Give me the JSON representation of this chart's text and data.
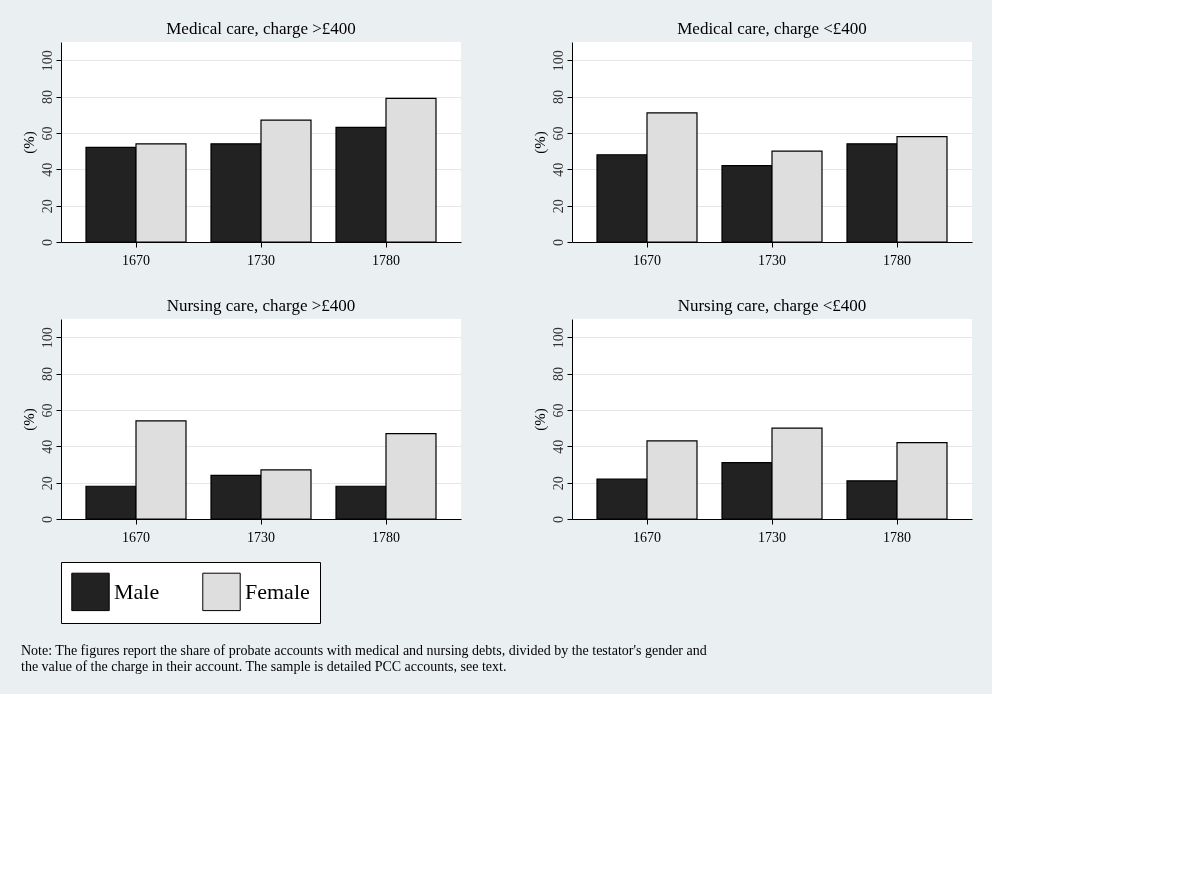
{
  "chart_data": [
    {
      "type": "bar",
      "title": "Medical care, charge >£400",
      "ylabel": "(%)",
      "categories": [
        "1670",
        "1730",
        "1780"
      ],
      "series": [
        {
          "name": "Male",
          "color": "#222222",
          "values": [
            52,
            54,
            63
          ]
        },
        {
          "name": "Female",
          "color": "#dedede",
          "values": [
            54,
            67,
            79
          ]
        }
      ],
      "ylim": [
        0,
        110
      ],
      "yticks": [
        0,
        20,
        40,
        60,
        80,
        100
      ],
      "grid": "y",
      "legend": "bottom"
    },
    {
      "type": "bar",
      "title": "Medical care, charge <£400",
      "ylabel": "(%)",
      "categories": [
        "1670",
        "1730",
        "1780"
      ],
      "series": [
        {
          "name": "Male",
          "color": "#222222",
          "values": [
            48,
            42,
            54
          ]
        },
        {
          "name": "Female",
          "color": "#dedede",
          "values": [
            71,
            50,
            58
          ]
        }
      ],
      "ylim": [
        0,
        110
      ],
      "yticks": [
        0,
        20,
        40,
        60,
        80,
        100
      ],
      "grid": "y",
      "legend": "bottom"
    },
    {
      "type": "bar",
      "title": "Nursing care, charge >£400",
      "ylabel": "(%)",
      "categories": [
        "1670",
        "1730",
        "1780"
      ],
      "series": [
        {
          "name": "Male",
          "color": "#222222",
          "values": [
            18,
            24,
            18
          ]
        },
        {
          "name": "Female",
          "color": "#dedede",
          "values": [
            54,
            27,
            47
          ]
        }
      ],
      "ylim": [
        0,
        110
      ],
      "yticks": [
        0,
        20,
        40,
        60,
        80,
        100
      ],
      "grid": "y",
      "legend": "bottom"
    },
    {
      "type": "bar",
      "title": "Nursing care, charge <£400",
      "ylabel": "(%)",
      "categories": [
        "1670",
        "1730",
        "1780"
      ],
      "series": [
        {
          "name": "Male",
          "color": "#222222",
          "values": [
            22,
            31,
            21
          ]
        },
        {
          "name": "Female",
          "color": "#dedede",
          "values": [
            43,
            50,
            42
          ]
        }
      ],
      "ylim": [
        0,
        110
      ],
      "yticks": [
        0,
        20,
        40,
        60,
        80,
        100
      ],
      "grid": "y",
      "legend": "bottom",
      "annotations": [
        "Note: The figures report the share of probate accounts with medical and nursing debts, divided by the testator's gender and the value of the charge in their account. The sample is detailed PCC accounts, see text."
      ]
    }
  ]
}
